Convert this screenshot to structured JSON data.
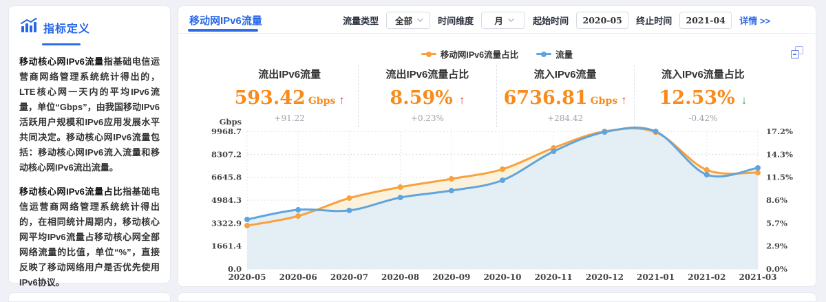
{
  "sidebar": {
    "title": "指标定义",
    "paragraphs": [
      {
        "lead": "移动核心网IPv6流量",
        "body": "指基础电信运营商网络管理系统统计得出的，LTE核心网一天内的平均IPv6流量，单位“Gbps”，由我国移动IPv6活跃用户规模和IPv6应用发展水平共同决定。移动核心网IPv6流量包括：移动核心网IPv6流入流量和移动核心网IPv6流出流量。"
      },
      {
        "lead": "移动核心网IPv6流量占比",
        "body": "指基础电信运营商网络管理系统统计得出的，在相同统计周期内，移动核心网平均IPv6流量占移动核心网全部网络流量的比值，单位“%”，直接反映了移动网络用户是否优先使用IPv6协议。"
      }
    ]
  },
  "panel": {
    "title": "移动网IPv6流量",
    "filters": {
      "traffic_type_label": "流量类型",
      "traffic_type_value": "全部",
      "time_dim_label": "时间维度",
      "time_dim_value": "月",
      "start_label": "起始时间",
      "start_value": "2020-05",
      "end_label": "终止时间",
      "end_value": "2021-04",
      "detail_link": "详情 >>"
    },
    "stats": [
      {
        "label": "流出IPv6流量",
        "value": "593.42",
        "unit": "Gbps",
        "arrow": "↑",
        "arrow_color": "#E0453A",
        "delta": "+91.22"
      },
      {
        "label": "流出IPv6流量占比",
        "value": "8.59%",
        "unit": "",
        "arrow": "↑",
        "arrow_color": "#E0453A",
        "delta": "+0.23%"
      },
      {
        "label": "流入IPv6流量",
        "value": "6736.81",
        "unit": "Gbps",
        "arrow": "↑",
        "arrow_color": "#E0453A",
        "delta": "+284.42"
      },
      {
        "label": "流入IPv6流量占比",
        "value": "12.53%",
        "unit": "",
        "arrow": "↓",
        "arrow_color": "#2FA84F",
        "delta": "-0.42%"
      }
    ],
    "accent_blue": "#2E6BE8",
    "value_orange": "#F98B1C"
  },
  "chart_data": {
    "type": "line",
    "categories": [
      "2020-05",
      "2020-06",
      "2020-07",
      "2020-08",
      "2020-09",
      "2020-10",
      "2020-11",
      "2020-12",
      "2021-01",
      "2021-02",
      "2021-03"
    ],
    "series": [
      {
        "name": "流量",
        "axis": "left",
        "color": "#5FA4DD",
        "area": "rgba(227,237,246,0.95)",
        "values": [
          3590,
          4290,
          4240,
          5180,
          5680,
          6430,
          8520,
          9920,
          9969,
          6830,
          7330
        ]
      },
      {
        "name": "移动网IPv6流量占比",
        "axis": "right",
        "color": "#F9A13C",
        "area": "#FBF2DE",
        "values": [
          5.42,
          6.62,
          8.86,
          10.23,
          11.27,
          12.47,
          15.14,
          17.2,
          17.1,
          12.38,
          12.04
        ]
      }
    ],
    "left_axis": {
      "label": "Gbps",
      "max": 9968.7,
      "ticks": [
        "0.0",
        "1661.4",
        "3322.9",
        "4984.3",
        "6645.8",
        "8307.2",
        "9968.7"
      ]
    },
    "right_axis": {
      "max": 17.2,
      "ticks": [
        "0.0%",
        "2.9%",
        "5.7%",
        "8.6%",
        "11.5%",
        "14.3%",
        "17.2%"
      ]
    },
    "grid": true,
    "legend_position": "top-center"
  }
}
